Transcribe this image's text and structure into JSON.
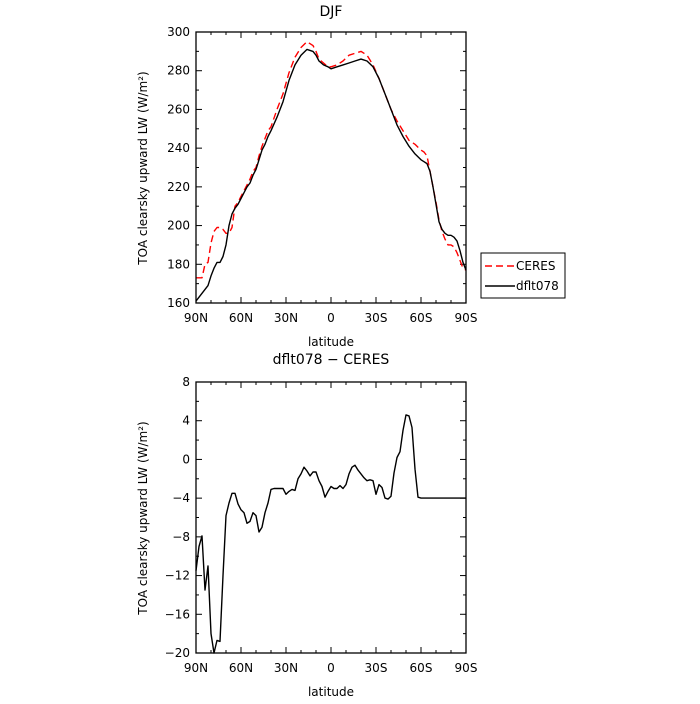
{
  "chart_data": [
    {
      "type": "line",
      "title": "DJF",
      "xlabel": "latitude",
      "ylabel": "TOA clearsky upward LW (W/m²)",
      "xlim": [
        90,
        -90
      ],
      "ylim": [
        160,
        300
      ],
      "xticks": [
        90,
        60,
        30,
        0,
        -30,
        -60,
        -90
      ],
      "xtick_labels": [
        "90N",
        "60N",
        "30N",
        "0",
        "30S",
        "60S",
        "90S"
      ],
      "yticks": [
        160,
        180,
        200,
        220,
        240,
        260,
        280,
        300
      ],
      "ytick_labels": [
        "160",
        "180",
        "200",
        "220",
        "240",
        "260",
        "280",
        "300"
      ],
      "grid": false,
      "legend_position": "right",
      "colors": {
        "CERES": "#ff0000",
        "dflt078": "#000000"
      },
      "series": [
        {
          "name": "CERES",
          "style": "dashed",
          "color": "#ff0000",
          "x": [
            90,
            88,
            86,
            84,
            82,
            80,
            78,
            76,
            74,
            72,
            70,
            68,
            66,
            64,
            62,
            60,
            58,
            56,
            54,
            52,
            50,
            48,
            46,
            44,
            42,
            40,
            36,
            32,
            28,
            24,
            20,
            16,
            12,
            10,
            8,
            5,
            2,
            0,
            -4,
            -8,
            -12,
            -16,
            -20,
            -24,
            -28,
            -32,
            -36,
            -40,
            -44,
            -48,
            -52,
            -56,
            -60,
            -62,
            -64,
            -66,
            -68,
            -70,
            -72,
            -74,
            -76,
            -78,
            -80,
            -82,
            -84,
            -86,
            -88,
            -90
          ],
          "y": [
            173,
            173,
            173,
            180,
            181,
            191,
            197,
            199,
            199,
            198,
            196,
            196,
            199,
            210,
            212,
            215,
            218,
            221,
            224,
            228,
            230,
            236,
            241,
            245,
            249,
            251,
            260,
            268,
            279,
            287,
            292,
            295,
            293,
            290,
            286,
            284,
            282,
            282,
            283,
            285,
            288,
            289,
            290,
            288,
            283,
            276,
            268,
            260,
            254,
            249,
            244,
            242,
            239,
            238,
            236,
            228,
            220,
            212,
            203,
            197,
            193,
            190,
            190,
            189,
            186,
            182,
            178,
            177
          ]
        },
        {
          "name": "dflt078",
          "style": "solid",
          "color": "#000000",
          "x": [
            90,
            88,
            86,
            84,
            82,
            80,
            78,
            76,
            74,
            72,
            70,
            68,
            66,
            64,
            62,
            60,
            58,
            56,
            54,
            52,
            50,
            48,
            46,
            44,
            42,
            40,
            36,
            32,
            28,
            24,
            20,
            16,
            12,
            10,
            8,
            5,
            2,
            0,
            -4,
            -8,
            -12,
            -16,
            -20,
            -24,
            -28,
            -32,
            -36,
            -40,
            -44,
            -48,
            -52,
            -56,
            -60,
            -62,
            -64,
            -66,
            -68,
            -70,
            -72,
            -74,
            -76,
            -78,
            -80,
            -82,
            -84,
            -86,
            -88,
            -90
          ],
          "y": [
            161,
            163,
            165,
            167,
            169,
            174,
            178,
            181,
            181,
            184,
            190,
            200,
            206,
            209,
            211,
            214,
            217,
            220,
            222,
            226,
            229,
            234,
            239,
            242,
            246,
            249,
            256,
            264,
            275,
            283,
            288,
            291,
            290,
            288,
            285,
            283,
            282,
            281,
            282,
            283,
            284,
            285,
            286,
            285,
            282,
            276,
            268,
            260,
            252,
            246,
            241,
            237,
            234,
            233,
            232,
            228,
            220,
            211,
            202,
            198,
            196,
            195,
            195,
            194,
            192,
            187,
            181,
            177
          ]
        }
      ]
    },
    {
      "type": "line",
      "title": "dflt078 − CERES",
      "xlabel": "latitude",
      "ylabel": "TOA clearsky upward LW (W/m²)",
      "xlim": [
        90,
        -90
      ],
      "ylim": [
        -20,
        8
      ],
      "xticks": [
        90,
        60,
        30,
        0,
        -30,
        -60,
        -90
      ],
      "xtick_labels": [
        "90N",
        "60N",
        "30N",
        "0",
        "30S",
        "60S",
        "90S"
      ],
      "yticks": [
        -20,
        -16,
        -12,
        -8,
        -4,
        0,
        4,
        8
      ],
      "ytick_labels": [
        "−20",
        "−16",
        "−12",
        "−8",
        "−4",
        "0",
        "4",
        "8"
      ],
      "grid": false,
      "series": [
        {
          "style": "solid",
          "color": "#000000",
          "x": [
            90,
            88,
            86,
            84,
            82,
            80,
            78,
            76,
            74,
            72,
            70,
            68,
            66,
            64,
            62,
            60,
            58,
            56,
            54,
            52,
            50,
            48,
            46,
            44,
            42,
            40,
            38,
            36,
            34,
            32,
            30,
            28,
            26,
            24,
            22,
            20,
            18,
            16,
            14,
            12,
            10,
            8,
            6,
            4,
            2,
            0,
            -2,
            -4,
            -6,
            -8,
            -10,
            -12,
            -14,
            -16,
            -18,
            -20,
            -22,
            -24,
            -26,
            -28,
            -30,
            -32,
            -34,
            -36,
            -38,
            -40,
            -42,
            -44,
            -46,
            -48,
            -50,
            -52,
            -54,
            -56,
            -58,
            -60,
            -62,
            -64,
            -66,
            -68,
            -70,
            -72,
            -74,
            -76,
            -78,
            -80,
            -82,
            -84,
            -86,
            -88,
            -90
          ],
          "y": [
            -11.5,
            -9,
            -7.9,
            -13.5,
            -11,
            -18,
            -20,
            -18.7,
            -18.8,
            -12,
            -5.8,
            -4.5,
            -3.5,
            -3.5,
            -4.6,
            -5.2,
            -5.5,
            -6.6,
            -6.4,
            -5.5,
            -5.8,
            -7.5,
            -7,
            -5.5,
            -4.5,
            -3.1,
            -3,
            -3,
            -3,
            -3,
            -3.6,
            -3.3,
            -3.1,
            -3.2,
            -2,
            -1.5,
            -0.8,
            -1.2,
            -1.7,
            -1.3,
            -1.3,
            -2.2,
            -2.8,
            -3.9,
            -3.3,
            -2.8,
            -3,
            -3,
            -2.7,
            -3,
            -2.6,
            -1.5,
            -0.8,
            -0.6,
            -1.1,
            -1.5,
            -1.9,
            -2.2,
            -2.1,
            -2.2,
            -3.6,
            -2.6,
            -2.9,
            -4,
            -4.1,
            -3.8,
            -1.4,
            0.2,
            0.8,
            3,
            4.6,
            4.5,
            3.3,
            -1,
            -3.9,
            -4,
            -4,
            -4,
            -4,
            -4,
            -4,
            -4,
            -4,
            -4,
            -4,
            -4,
            -4,
            -4,
            -4,
            -4,
            -4
          ]
        }
      ]
    }
  ]
}
